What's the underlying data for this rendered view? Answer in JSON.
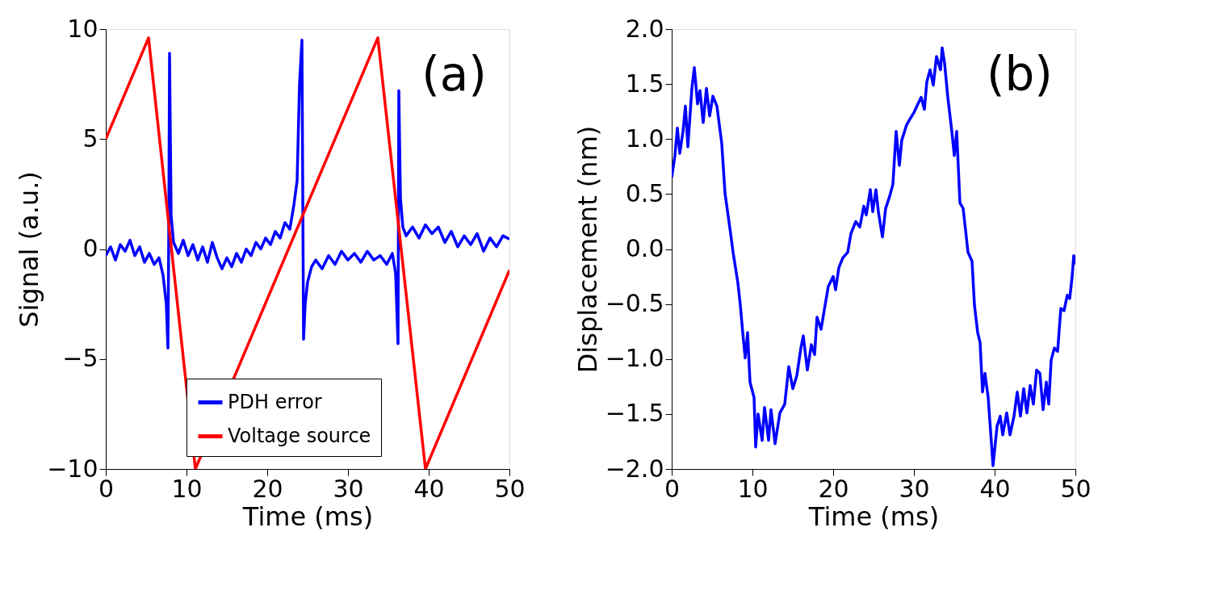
{
  "chart_data": [
    {
      "type": "line",
      "xlabel": "Time (ms)",
      "ylabel": "Signal (a.u.)",
      "annotations": [
        "(a)"
      ],
      "xlim": [
        0,
        50
      ],
      "ylim": [
        -10,
        10
      ],
      "xticks": [
        0,
        10,
        20,
        30,
        40,
        50
      ],
      "yticks": [
        {
          "value": -10,
          "label": "−10"
        },
        {
          "value": -5,
          "label": "−5"
        },
        0,
        5,
        10
      ],
      "grid": false,
      "legend": "bottom",
      "marker": "none",
      "line_style": "solid",
      "series": [
        {
          "name": "PDH error",
          "color": "#0000ff",
          "x": [
            0,
            0.6,
            1.2,
            1.8,
            2.4,
            3.0,
            3.6,
            4.2,
            4.8,
            5.4,
            6.0,
            6.6,
            7.1,
            7.5,
            7.7,
            7.8,
            7.9,
            8.1,
            8.4,
            9.0,
            9.6,
            10.2,
            10.8,
            11.4,
            12.0,
            12.6,
            13.2,
            13.8,
            14.4,
            15.0,
            15.6,
            16.2,
            16.8,
            17.4,
            18.0,
            18.6,
            19.2,
            19.8,
            20.4,
            21.0,
            21.6,
            22.2,
            22.8,
            23.3,
            23.7,
            24.0,
            24.3,
            24.5,
            24.7,
            25.0,
            25.5,
            26.0,
            26.8,
            27.6,
            28.4,
            29.2,
            30.0,
            30.8,
            31.6,
            32.4,
            33.2,
            34.0,
            34.8,
            35.5,
            35.9,
            36.2,
            36.3,
            36.5,
            36.8,
            37.2,
            38.0,
            38.8,
            39.6,
            40.4,
            41.2,
            42.0,
            42.8,
            43.6,
            44.4,
            45.2,
            46.0,
            46.8,
            47.6,
            48.4,
            49.2,
            50
          ],
          "values": [
            -0.3,
            0.1,
            -0.5,
            0.2,
            -0.1,
            0.4,
            -0.3,
            0.1,
            -0.6,
            -0.2,
            -0.7,
            -0.4,
            -1.2,
            -2.5,
            -4.5,
            0.5,
            8.9,
            1.5,
            0.3,
            -0.2,
            0.4,
            -0.3,
            0.2,
            -0.5,
            0.1,
            -0.6,
            0.3,
            -0.4,
            -0.9,
            -0.4,
            -0.8,
            -0.2,
            -0.6,
            0.0,
            -0.3,
            0.3,
            0.0,
            0.5,
            0.2,
            0.8,
            0.5,
            1.2,
            0.9,
            2.0,
            3.1,
            7.5,
            9.5,
            -4.1,
            -2.5,
            -1.5,
            -0.8,
            -0.5,
            -0.9,
            -0.3,
            -0.7,
            -0.1,
            -0.5,
            -0.2,
            -0.6,
            -0.1,
            -0.5,
            -0.3,
            -0.7,
            -0.2,
            -1.1,
            -4.3,
            7.2,
            2.3,
            1.0,
            0.6,
            1.0,
            0.5,
            1.1,
            0.7,
            1.0,
            0.3,
            0.8,
            0.1,
            0.6,
            0.2,
            0.7,
            -0.1,
            0.5,
            0.1,
            0.6,
            0.45
          ]
        },
        {
          "name": "Voltage source",
          "color": "#ff0000",
          "x": [
            0,
            5.3,
            11.1,
            33.7,
            39.6,
            50
          ],
          "values": [
            5.0,
            9.6,
            -10.0,
            9.6,
            -10.0,
            -0.96
          ]
        }
      ]
    },
    {
      "type": "line",
      "xlabel": "Time (ms)",
      "ylabel": "Displacement (nm)",
      "annotations": [
        "(b)"
      ],
      "xlim": [
        0,
        50
      ],
      "ylim": [
        -2,
        2
      ],
      "xticks": [
        0,
        10,
        20,
        30,
        40,
        50
      ],
      "yticks": [
        {
          "value": -2,
          "label": "−2.0"
        },
        {
          "value": -1.5,
          "label": "−1.5"
        },
        {
          "value": -1,
          "label": "−1.0"
        },
        {
          "value": -0.5,
          "label": "−0.5"
        },
        {
          "value": 0,
          "label": "0.0"
        },
        0.5,
        {
          "value": 1,
          "label": "1.0"
        },
        1.5,
        {
          "value": 2,
          "label": "2.0"
        }
      ],
      "grid": false,
      "legend": false,
      "marker": "none",
      "line_style": "solid",
      "series": [
        {
          "color": "#0000ff",
          "x": [
            0,
            0.4,
            0.7,
            1,
            1.4,
            1.7,
            2,
            2.5,
            2.8,
            3.2,
            3.5,
            3.9,
            4.3,
            4.7,
            5.1,
            5.6,
            6.2,
            6.6,
            7.3,
            7.6,
            8.2,
            8.5,
            8.8,
            9.1,
            9.4,
            9.7,
            10.2,
            10.4,
            10.7,
            11.2,
            11.5,
            12,
            12.3,
            12.8,
            13.4,
            14,
            14.5,
            15,
            15.5,
            16,
            16.3,
            16.8,
            17.3,
            17.7,
            18,
            18.5,
            19,
            19.4,
            20,
            20.3,
            20.7,
            21.2,
            21.8,
            22.2,
            22.8,
            23.3,
            23.8,
            24.1,
            24.6,
            24.9,
            25.3,
            25.6,
            26.1,
            26.5,
            27,
            27.4,
            27.8,
            28.2,
            28.5,
            29.1,
            29.5,
            30,
            30.5,
            30.9,
            31.3,
            31.6,
            32,
            32.4,
            32.8,
            33.3,
            33.5,
            33.8,
            34.2,
            34.7,
            35,
            35.3,
            35.7,
            36.1,
            36.7,
            37.2,
            37.5,
            37.9,
            38.2,
            38.5,
            38.8,
            39.2,
            39.8,
            40.3,
            40.7,
            41,
            41.5,
            41.9,
            42.4,
            42.8,
            43.2,
            43.6,
            44,
            44.4,
            44.8,
            45.2,
            45.6,
            46,
            46.4,
            46.7,
            47,
            47.4,
            47.8,
            48.2,
            48.6,
            49,
            49.3,
            49.6,
            49.8,
            50
          ],
          "values": [
            0.65,
            0.85,
            1.1,
            0.87,
            1.07,
            1.3,
            0.93,
            1.46,
            1.65,
            1.32,
            1.44,
            1.15,
            1.46,
            1.21,
            1.39,
            1.3,
            0.96,
            0.51,
            0.14,
            -0.03,
            -0.31,
            -0.51,
            -0.76,
            -0.99,
            -0.76,
            -1.21,
            -1.35,
            -1.8,
            -1.5,
            -1.74,
            -1.44,
            -1.74,
            -1.46,
            -1.77,
            -1.49,
            -1.41,
            -1.07,
            -1.27,
            -1.15,
            -0.9,
            -0.79,
            -1.1,
            -0.87,
            -0.96,
            -0.62,
            -0.73,
            -0.51,
            -0.34,
            -0.25,
            -0.37,
            -0.17,
            -0.08,
            -0.03,
            0.14,
            0.25,
            0.2,
            0.39,
            0.31,
            0.54,
            0.34,
            0.54,
            0.34,
            0.11,
            0.37,
            0.48,
            0.59,
            1.07,
            0.76,
            0.99,
            1.13,
            1.18,
            1.24,
            1.32,
            1.38,
            1.27,
            1.52,
            1.63,
            1.49,
            1.75,
            1.63,
            1.83,
            1.69,
            1.38,
            1.07,
            0.85,
            1.07,
            0.42,
            0.37,
            -0.03,
            -0.11,
            -0.51,
            -0.76,
            -0.85,
            -1.3,
            -1.13,
            -1.35,
            -1.97,
            -1.61,
            -1.52,
            -1.69,
            -1.49,
            -1.69,
            -1.52,
            -1.3,
            -1.52,
            -1.27,
            -1.49,
            -1.24,
            -1.41,
            -1.1,
            -1.13,
            -1.46,
            -1.21,
            -1.41,
            -1.01,
            -0.9,
            -0.93,
            -0.54,
            -0.56,
            -0.42,
            -0.45,
            -0.25,
            -0.06,
            -0.14
          ]
        }
      ]
    }
  ]
}
